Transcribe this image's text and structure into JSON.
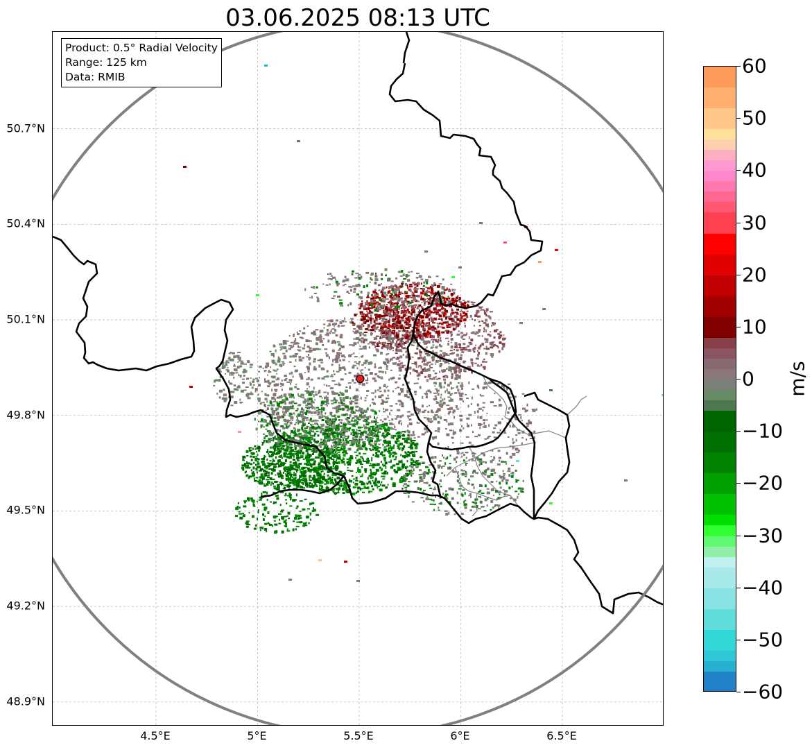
{
  "title": "03.06.2025 08:13 UTC",
  "info": {
    "product": "Product: 0.5° Radial Velocity",
    "range": "Range: 125 km",
    "data": "Data: RMIB"
  },
  "axes": {
    "lat_ticks": [
      {
        "value": 50.7,
        "label": "50.7°N"
      },
      {
        "value": 50.4,
        "label": "50.4°N"
      },
      {
        "value": 50.1,
        "label": "50.1°N"
      },
      {
        "value": 49.8,
        "label": "49.8°N"
      },
      {
        "value": 49.5,
        "label": "49.5°N"
      },
      {
        "value": 49.2,
        "label": "49.2°N"
      },
      {
        "value": 48.9,
        "label": "48.9°N"
      }
    ],
    "lon_ticks": [
      {
        "value": 4.5,
        "label": "4.5°E"
      },
      {
        "value": 5.0,
        "label": "5°E"
      },
      {
        "value": 5.5,
        "label": "5.5°E"
      },
      {
        "value": 6.0,
        "label": "6°E"
      },
      {
        "value": 6.5,
        "label": "6.5°E"
      }
    ],
    "lat_range": [
      48.8,
      51.0
    ],
    "lon_range": [
      4.0,
      7.0
    ],
    "grid": true
  },
  "radar_site": {
    "lon": 5.505,
    "lat": 49.915,
    "color": "#e02020"
  },
  "colorbar": {
    "unit": "m/s",
    "range": [
      -60,
      60
    ],
    "ticks": [
      "60",
      "50",
      "40",
      "30",
      "20",
      "10",
      "0",
      "−10",
      "−20",
      "−30",
      "−40",
      "−50",
      "−60"
    ],
    "stops": [
      {
        "from": 56,
        "to": 60,
        "color": "#ff9b5a"
      },
      {
        "from": 52,
        "to": 56,
        "color": "#ffb06e"
      },
      {
        "from": 48,
        "to": 52,
        "color": "#ffc788"
      },
      {
        "from": 46,
        "to": 48,
        "color": "#ffe09a"
      },
      {
        "from": 44,
        "to": 46,
        "color": "#ffd0b0"
      },
      {
        "from": 42,
        "to": 44,
        "color": "#ffb0c0"
      },
      {
        "from": 40,
        "to": 42,
        "color": "#ff9ad0"
      },
      {
        "from": 38,
        "to": 40,
        "color": "#ff88cc"
      },
      {
        "from": 36,
        "to": 38,
        "color": "#ff78b0"
      },
      {
        "from": 34,
        "to": 36,
        "color": "#ff6890"
      },
      {
        "from": 32,
        "to": 34,
        "color": "#ff5870"
      },
      {
        "from": 28,
        "to": 32,
        "color": "#ff4050"
      },
      {
        "from": 24,
        "to": 28,
        "color": "#ff0000"
      },
      {
        "from": 20,
        "to": 24,
        "color": "#e00000"
      },
      {
        "from": 16,
        "to": 20,
        "color": "#c00000"
      },
      {
        "from": 12,
        "to": 16,
        "color": "#a00000"
      },
      {
        "from": 8,
        "to": 12,
        "color": "#800000"
      },
      {
        "from": 6,
        "to": 8,
        "color": "#884048"
      },
      {
        "from": 4,
        "to": 6,
        "color": "#8a5560"
      },
      {
        "from": 2,
        "to": 4,
        "color": "#8a6a72"
      },
      {
        "from": 0,
        "to": 2,
        "color": "#8a7878"
      },
      {
        "from": -2,
        "to": 0,
        "color": "#7a8078"
      },
      {
        "from": -4,
        "to": -2,
        "color": "#668a66"
      },
      {
        "from": -6,
        "to": -4,
        "color": "#507850"
      },
      {
        "from": -10,
        "to": -6,
        "color": "#006400"
      },
      {
        "from": -14,
        "to": -10,
        "color": "#007000"
      },
      {
        "from": -18,
        "to": -14,
        "color": "#008400"
      },
      {
        "from": -22,
        "to": -18,
        "color": "#00a000"
      },
      {
        "from": -26,
        "to": -22,
        "color": "#00c000"
      },
      {
        "from": -28,
        "to": -26,
        "color": "#00e000"
      },
      {
        "from": -30,
        "to": -28,
        "color": "#30ff30"
      },
      {
        "from": -32,
        "to": -30,
        "color": "#60f870"
      },
      {
        "from": -34,
        "to": -32,
        "color": "#90f0a8"
      },
      {
        "from": -36,
        "to": -34,
        "color": "#c0f0f0"
      },
      {
        "from": -40,
        "to": -36,
        "color": "#a8eaea"
      },
      {
        "from": -44,
        "to": -40,
        "color": "#88e4e4"
      },
      {
        "from": -48,
        "to": -44,
        "color": "#60dede"
      },
      {
        "from": -52,
        "to": -48,
        "color": "#30d8d8"
      },
      {
        "from": -54,
        "to": -52,
        "color": "#30c8d8"
      },
      {
        "from": -56,
        "to": -54,
        "color": "#28b0d0"
      },
      {
        "from": -60,
        "to": -56,
        "color": "#2080c8"
      }
    ]
  },
  "colors": {
    "range_ring": "#808080",
    "border_major": "#000000",
    "border_minor": "#808080",
    "grid": "#b0b0b0"
  }
}
